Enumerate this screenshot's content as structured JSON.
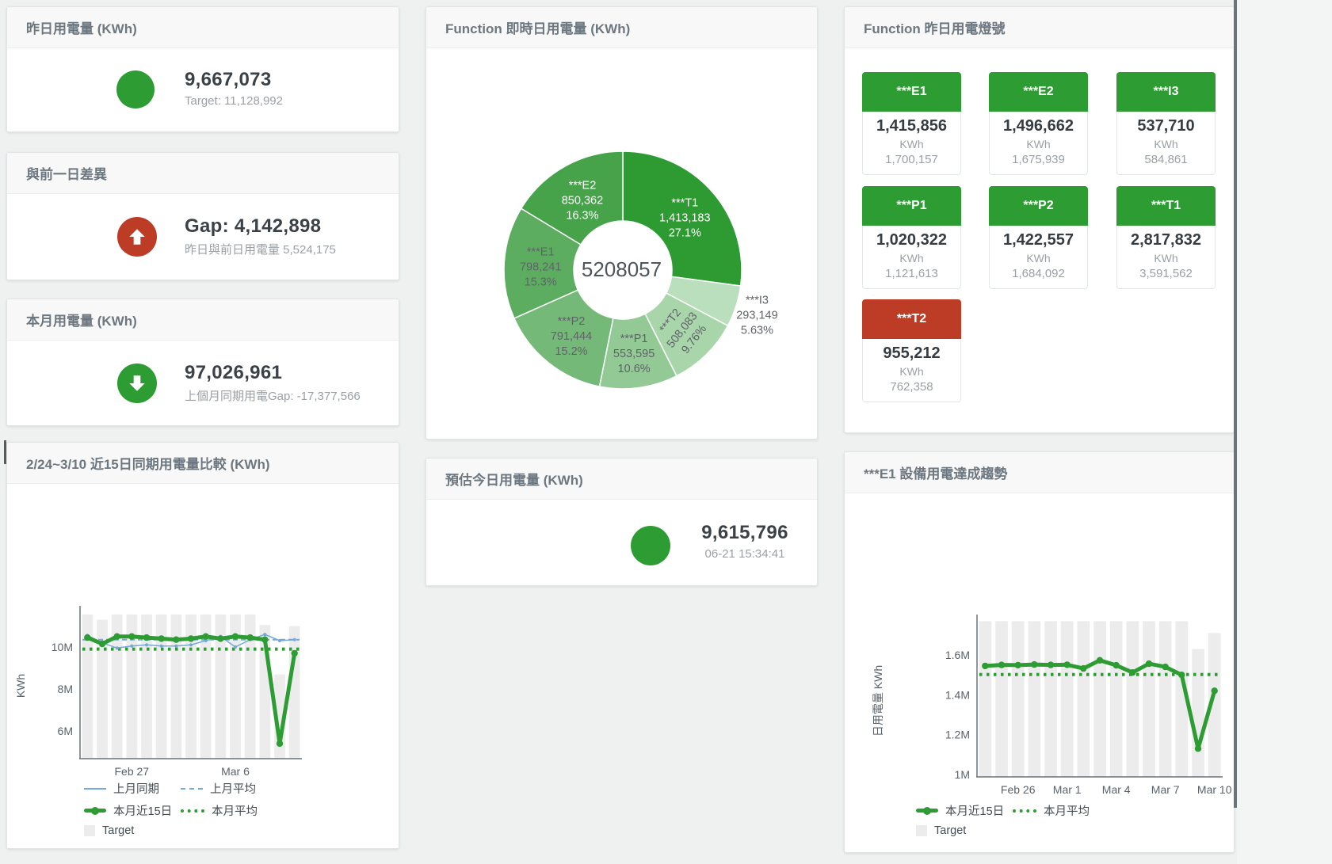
{
  "stat_cards": [
    {
      "title": "昨日用電量 (KWh)",
      "value": "9,667,073",
      "subtitle": "Target: 11,128,992",
      "icon": "green-circle"
    },
    {
      "title": "與前一日差異",
      "value": "Gap: 4,142,898",
      "subtitle": "昨日與前日用電量 5,524,175",
      "icon": "red-circle-up-arrow"
    },
    {
      "title": "本月用電量 (KWh)",
      "value": "97,026,961",
      "subtitle": "上個月同期用電Gap: -17,377,566",
      "icon": "green-circle-down-arrow"
    },
    {
      "title": "預估今日用電量 (KWh)",
      "value": "9,615,796",
      "subtitle": "06-21 15:34:41",
      "icon": "green-circle"
    }
  ],
  "lights": {
    "title": "Function 昨日用電燈號",
    "unit_label": "KWh",
    "tiles": [
      {
        "label": "***E1",
        "value": "1,415,856",
        "target": "1,700,157",
        "status_color": "#2d9c32"
      },
      {
        "label": "***E2",
        "value": "1,496,662",
        "target": "1,675,939",
        "status_color": "#2d9c32"
      },
      {
        "label": "***I3",
        "value": "537,710",
        "target": "584,861",
        "status_color": "#2d9c32"
      },
      {
        "label": "***P1",
        "value": "1,020,322",
        "target": "1,121,613",
        "status_color": "#2d9c32"
      },
      {
        "label": "***P2",
        "value": "1,422,557",
        "target": "1,684,092",
        "status_color": "#2d9c32"
      },
      {
        "label": "***T1",
        "value": "2,817,832",
        "target": "3,591,562",
        "status_color": "#2d9c32"
      },
      {
        "label": "***T2",
        "value": "955,212",
        "target": "762,358",
        "status_color": "#bd3c26"
      }
    ]
  },
  "colors": {
    "green": "#2d9c32",
    "red": "#bd3c26",
    "blue": "#74a9d8",
    "target_bar": "#ececec"
  },
  "chart_data": [
    {
      "type": "pie",
      "title": "Function 即時日用電量 (KWh)",
      "center_total": "5208057",
      "legend_position": "none",
      "slices": [
        {
          "name": "***T1",
          "value": 1413183,
          "value_label": "1,413,183",
          "pct_label": "27.1%",
          "color": "#2d9b32",
          "label_color": "#ffffff"
        },
        {
          "name": "***I3",
          "value": 293149,
          "value_label": "293,149",
          "pct_label": "5.63%",
          "color": "#badfbc",
          "label_color": "#5f6368",
          "label_outside": true
        },
        {
          "name": "***T2",
          "value": 508083,
          "value_label": "508,083",
          "pct_label": "9.76%",
          "color": "#a9d5ab",
          "label_color": "#5f6368",
          "label_rotate": -52
        },
        {
          "name": "***P1",
          "value": 553595,
          "value_label": "553,595",
          "pct_label": "10.6%",
          "color": "#93c995",
          "label_color": "#5f6368"
        },
        {
          "name": "***P2",
          "value": 791444,
          "value_label": "791,444",
          "pct_label": "15.2%",
          "color": "#74b977",
          "label_color": "#5f6368"
        },
        {
          "name": "***E1",
          "value": 798241,
          "value_label": "798,241",
          "pct_label": "15.3%",
          "color": "#5dad60",
          "label_color": "#5f6368"
        },
        {
          "name": "***E2",
          "value": 850362,
          "value_label": "850,362",
          "pct_label": "16.3%",
          "color": "#46a34a",
          "label_color": "#ffffff"
        }
      ]
    },
    {
      "type": "line",
      "title": "2/24~3/10 近15日同期用電量比較 (KWh)",
      "ylabel": "KWh",
      "ylim": [
        4680000,
        11660000
      ],
      "grid": false,
      "legend_position": "bottom-left",
      "yticks": [
        {
          "value": 6000000,
          "label": "6M"
        },
        {
          "value": 8000000,
          "label": "8M"
        },
        {
          "value": 10000000,
          "label": "10M"
        }
      ],
      "xticks": [
        {
          "index": 3,
          "label": "Feb 27"
        },
        {
          "index": 10,
          "label": "Mar 6"
        }
      ],
      "series": [
        {
          "name": "上月同期",
          "type": "line",
          "color": "#74a9d8",
          "width": 1.5,
          "values": [
            10550000,
            10200000,
            9950000,
            10050000,
            10100000,
            10050000,
            10050000,
            10100000,
            10300000,
            10500000,
            10000000,
            10350000,
            10600000,
            10300000,
            10350000
          ]
        },
        {
          "name": "上月平均",
          "type": "avg",
          "style": "dashed",
          "color": "#74a9d8",
          "width": 2,
          "value": 10350000
        },
        {
          "name": "本月近15日",
          "type": "line",
          "color": "#2d9c32",
          "width": 5,
          "values": [
            10450000,
            10150000,
            10500000,
            10500000,
            10450000,
            10400000,
            10350000,
            10400000,
            10500000,
            10400000,
            10500000,
            10450000,
            10350000,
            5400000,
            9700000
          ]
        },
        {
          "name": "本月平均",
          "type": "avg",
          "style": "dotted",
          "color": "#2d9c32",
          "width": 4,
          "value": 9900000
        },
        {
          "name": "Target",
          "type": "bar",
          "color": "#ececec",
          "values": [
            11550000,
            11300000,
            11550000,
            11550000,
            11550000,
            11550000,
            11550000,
            11550000,
            11550000,
            11550000,
            11550000,
            11550000,
            11050000,
            8700000,
            11000000
          ]
        }
      ]
    },
    {
      "type": "line",
      "title": "***E1 設備用電達成趨勢",
      "ylabel": "日用電量 KWh",
      "ylim": [
        988000,
        1771000
      ],
      "grid": false,
      "legend_position": "bottom-left",
      "yticks": [
        {
          "value": 1000000,
          "label": "1M"
        },
        {
          "value": 1200000,
          "label": "1.2M"
        },
        {
          "value": 1400000,
          "label": "1.4M"
        },
        {
          "value": 1600000,
          "label": "1.6M"
        }
      ],
      "xticks": [
        {
          "index": 2,
          "label": "Feb 26"
        },
        {
          "index": 5,
          "label": "Mar 1"
        },
        {
          "index": 8,
          "label": "Mar 4"
        },
        {
          "index": 11,
          "label": "Mar 7"
        },
        {
          "index": 14,
          "label": "Mar 10"
        }
      ],
      "series": [
        {
          "name": "本月近15日",
          "type": "line",
          "color": "#2d9c32",
          "width": 5,
          "values": [
            1545000,
            1550000,
            1549000,
            1552000,
            1550000,
            1551000,
            1532000,
            1573000,
            1548000,
            1512000,
            1556000,
            1540000,
            1500000,
            1130000,
            1420000
          ]
        },
        {
          "name": "本月平均",
          "type": "avg",
          "style": "dotted",
          "color": "#2d9c32",
          "width": 4,
          "value": 1502000
        },
        {
          "name": "Target",
          "type": "bar",
          "color": "#ececec",
          "values": [
            1770000,
            1770000,
            1770000,
            1770000,
            1770000,
            1770000,
            1770000,
            1770000,
            1770000,
            1770000,
            1770000,
            1770000,
            1770000,
            1630000,
            1710000
          ]
        }
      ]
    }
  ]
}
